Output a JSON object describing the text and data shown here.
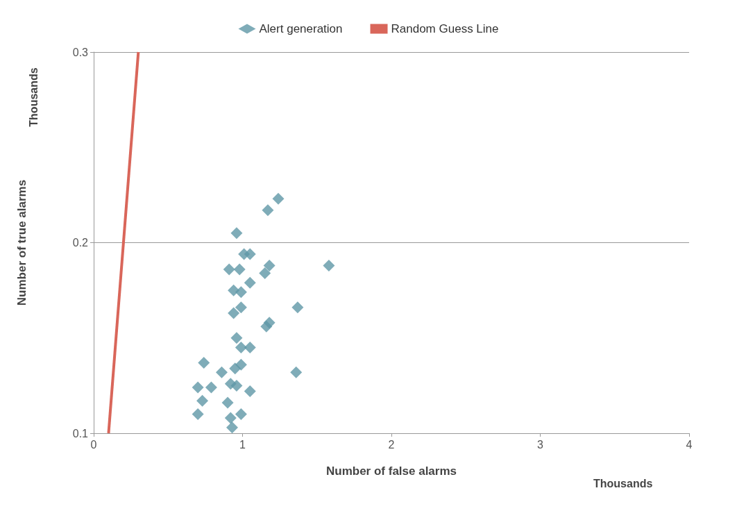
{
  "chart_data": {
    "type": "scatter",
    "xlabel": "Number of false alarms",
    "ylabel": "Number of true alarms",
    "annotations": [
      "Thousands",
      "Thousands"
    ],
    "xlim": [
      0,
      4
    ],
    "xticks": [
      0,
      1,
      2,
      3,
      4
    ],
    "ylim": [
      0.1,
      0.3
    ],
    "yticks": [
      0.1,
      0.2,
      0.3
    ],
    "grid": "y",
    "legend": "top",
    "marker": "diamond",
    "series": [
      {
        "name": "Alert generation",
        "color": "#5f97a6",
        "type": "scatter",
        "x": [
          1.24,
          1.17,
          0.96,
          1.01,
          1.05,
          0.91,
          0.98,
          1.18,
          1.15,
          1.58,
          0.94,
          0.99,
          1.05,
          0.94,
          0.99,
          1.37,
          1.16,
          1.18,
          0.96,
          0.99,
          1.05,
          0.74,
          1.36,
          0.86,
          0.95,
          0.99,
          0.7,
          0.79,
          0.92,
          0.96,
          1.05,
          0.73,
          0.88,
          0.9,
          0.7,
          0.92,
          0.99,
          0.93
        ],
        "values": [
          0.223,
          0.217,
          0.205,
          0.194,
          0.194,
          0.186,
          0.186,
          0.188,
          0.184,
          0.188,
          0.175,
          0.174,
          0.179,
          0.163,
          0.166,
          0.166,
          0.156,
          0.158,
          0.15,
          0.145,
          0.145,
          0.137,
          0.132,
          0.132,
          0.134,
          0.136,
          0.124,
          0.124,
          0.126,
          0.125,
          0.122,
          0.117,
          null,
          0.116,
          0.11,
          0.108,
          0.11,
          0.103
        ]
      },
      {
        "name": "Random Guess Line",
        "color": "#d9665a",
        "type": "line",
        "x": [
          0.1,
          0.3
        ],
        "values": [
          0.1,
          0.3
        ],
        "marker": "none"
      }
    ]
  }
}
